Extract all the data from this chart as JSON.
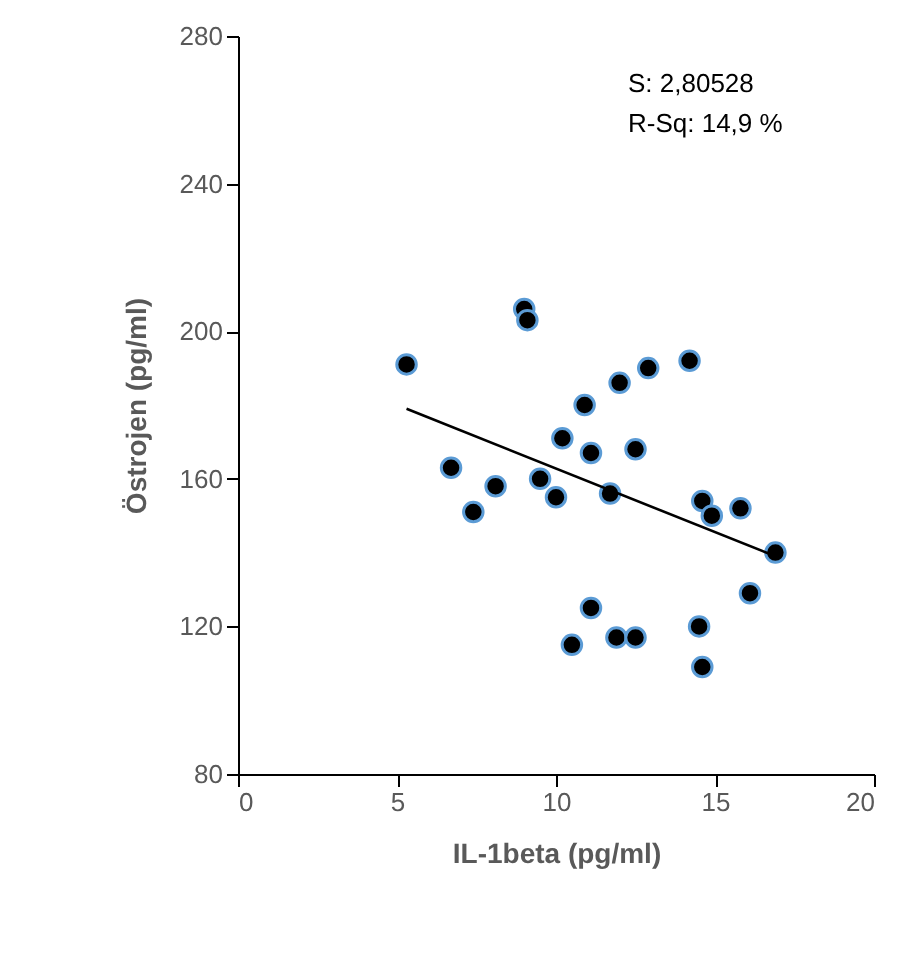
{
  "chart_data": {
    "type": "scatter",
    "xlabel": "IL-1beta (pg/ml)",
    "ylabel": "Östrojen (pg/ml)",
    "xlim": [
      0,
      20
    ],
    "xticks": [
      0,
      5,
      10,
      15,
      20
    ],
    "ylim": [
      80,
      280
    ],
    "yticks": [
      80,
      120,
      160,
      200,
      240,
      280
    ],
    "grid": false,
    "annotations": [
      "S: 2,80528",
      "R-Sq: 14,9 %"
    ],
    "series": [
      {
        "marker": "circle",
        "color": "#000000",
        "x": [
          5.3,
          6.7,
          7.4,
          8.1,
          9.5,
          10.0,
          9.0,
          9.1,
          10.2,
          10.9,
          11.1,
          12.0,
          12.9,
          14.2,
          12.5,
          11.7,
          14.6,
          14.9,
          15.8,
          16.9,
          16.1,
          11.1,
          10.5,
          11.9,
          12.5,
          14.5,
          14.6
        ],
        "values": [
          191,
          163,
          151,
          158,
          160,
          155,
          206,
          203,
          171,
          180,
          167,
          186,
          190,
          192,
          168,
          156,
          154,
          150,
          152,
          140,
          129,
          125,
          115,
          117,
          117,
          120,
          109
        ]
      },
      {
        "type": "line",
        "color": "#000000",
        "x": [
          5.3,
          16.9
        ],
        "values": [
          179,
          139
        ]
      }
    ]
  }
}
